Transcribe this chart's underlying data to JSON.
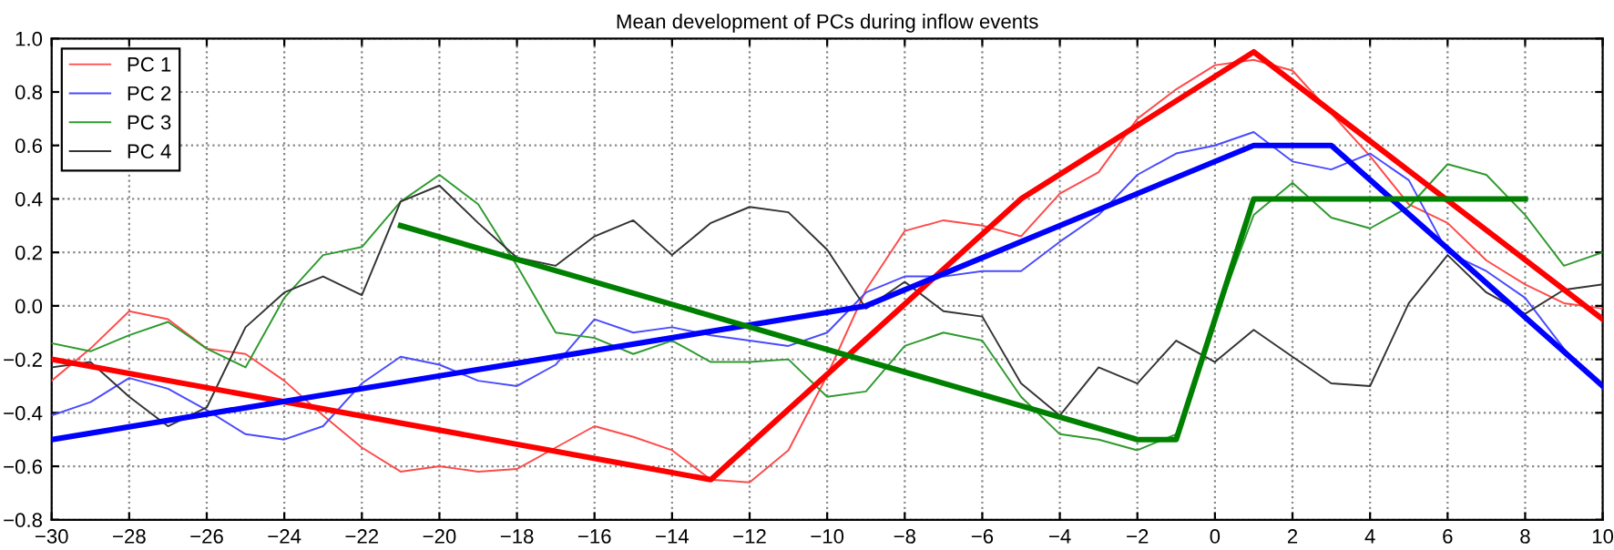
{
  "chart_data": {
    "type": "line",
    "title": "Mean development of PCs during inflow events",
    "x": [
      -30,
      -29,
      -28,
      -27,
      -26,
      -25,
      -24,
      -23,
      -22,
      -21,
      -20,
      -19,
      -18,
      -17,
      -16,
      -15,
      -14,
      -13,
      -12,
      -11,
      -10,
      -9,
      -8,
      -7,
      -6,
      -5,
      -4,
      -3,
      -2,
      -1,
      0,
      1,
      2,
      3,
      4,
      5,
      6,
      7,
      8,
      9,
      10
    ],
    "series": [
      {
        "name": "PC 1",
        "color": "#ff4a4a",
        "values": [
          -0.28,
          -0.16,
          -0.02,
          -0.05,
          -0.16,
          -0.18,
          -0.28,
          -0.41,
          -0.53,
          -0.62,
          -0.6,
          -0.62,
          -0.61,
          -0.53,
          -0.45,
          -0.49,
          -0.54,
          -0.65,
          -0.66,
          -0.54,
          -0.26,
          0.06,
          0.28,
          0.32,
          0.3,
          0.26,
          0.42,
          0.5,
          0.7,
          0.81,
          0.9,
          0.92,
          0.88,
          0.72,
          0.56,
          0.38,
          0.31,
          0.17,
          0.08,
          0.01,
          -0.01
        ]
      },
      {
        "name": "PC 2",
        "color": "#4a4aff",
        "values": [
          -0.41,
          -0.36,
          -0.27,
          -0.31,
          -0.39,
          -0.48,
          -0.5,
          -0.45,
          -0.29,
          -0.19,
          -0.22,
          -0.28,
          -0.3,
          -0.22,
          -0.05,
          -0.1,
          -0.08,
          -0.11,
          -0.13,
          -0.15,
          -0.1,
          0.05,
          0.11,
          0.11,
          0.13,
          0.13,
          0.24,
          0.34,
          0.49,
          0.57,
          0.6,
          0.65,
          0.54,
          0.51,
          0.57,
          0.47,
          0.2,
          0.13,
          0.03,
          -0.16,
          -0.31
        ]
      },
      {
        "name": "PC 3",
        "color": "#2e9a2e",
        "values": [
          -0.14,
          -0.17,
          -0.11,
          -0.06,
          -0.16,
          -0.23,
          0.03,
          0.19,
          0.22,
          0.39,
          0.49,
          0.38,
          0.15,
          -0.1,
          -0.12,
          -0.18,
          -0.13,
          -0.21,
          -0.21,
          -0.2,
          -0.34,
          -0.32,
          -0.15,
          -0.1,
          -0.13,
          -0.34,
          -0.48,
          -0.5,
          -0.54,
          -0.48,
          -0.05,
          0.34,
          0.46,
          0.33,
          0.29,
          0.37,
          0.53,
          0.49,
          0.34,
          0.15,
          0.2
        ]
      },
      {
        "name": "PC 4",
        "color": "#333333",
        "values": [
          -0.23,
          -0.21,
          -0.34,
          -0.45,
          -0.38,
          -0.08,
          0.05,
          0.11,
          0.04,
          0.39,
          0.45,
          0.31,
          0.18,
          0.15,
          0.26,
          0.32,
          0.19,
          0.31,
          0.37,
          0.35,
          0.21,
          -0.01,
          0.09,
          -0.02,
          -0.04,
          -0.29,
          -0.41,
          -0.23,
          -0.29,
          -0.13,
          -0.21,
          -0.09,
          -0.19,
          -0.29,
          -0.3,
          0.01,
          0.19,
          0.05,
          -0.03,
          0.06,
          0.08
        ]
      },
      {
        "color": "#ff0000",
        "x": [
          -30,
          -13,
          -5,
          1,
          10
        ],
        "values": [
          -0.2,
          -0.65,
          0.4,
          0.95,
          -0.05
        ]
      },
      {
        "color": "#0000ff",
        "x": [
          -30,
          -9,
          1,
          3,
          10
        ],
        "values": [
          -0.5,
          0.0,
          0.6,
          0.6,
          -0.3
        ]
      },
      {
        "color": "#008000",
        "x": [
          -21,
          -2,
          -1,
          1,
          8
        ],
        "values": [
          0.3,
          -0.5,
          -0.5,
          0.4,
          0.4
        ]
      }
    ],
    "xlim": [
      -30,
      10
    ],
    "xticks": [
      -30,
      -28,
      -26,
      -24,
      -22,
      -20,
      -18,
      -16,
      -14,
      -12,
      -10,
      -8,
      -6,
      -4,
      -2,
      0,
      2,
      4,
      6,
      8,
      10
    ],
    "ylim": [
      -0.8,
      1.0
    ],
    "yticks": [
      {
        "value": -0.8,
        "label": "−0.8"
      },
      {
        "value": -0.6,
        "label": "−0.6"
      },
      {
        "value": -0.4,
        "label": "−0.4"
      },
      {
        "value": -0.2,
        "label": "−0.2"
      },
      {
        "value": 0.0,
        "label": "0.0"
      },
      {
        "value": 0.2,
        "label": "0.2"
      },
      {
        "value": 0.4,
        "label": "0.4"
      },
      {
        "value": 0.6,
        "label": "0.6"
      },
      {
        "value": 0.8,
        "label": "0.8"
      },
      {
        "value": 1.0,
        "label": "1.0"
      }
    ],
    "grid": true,
    "legend": "top left",
    "line_style": "solid",
    "marker": "none"
  }
}
